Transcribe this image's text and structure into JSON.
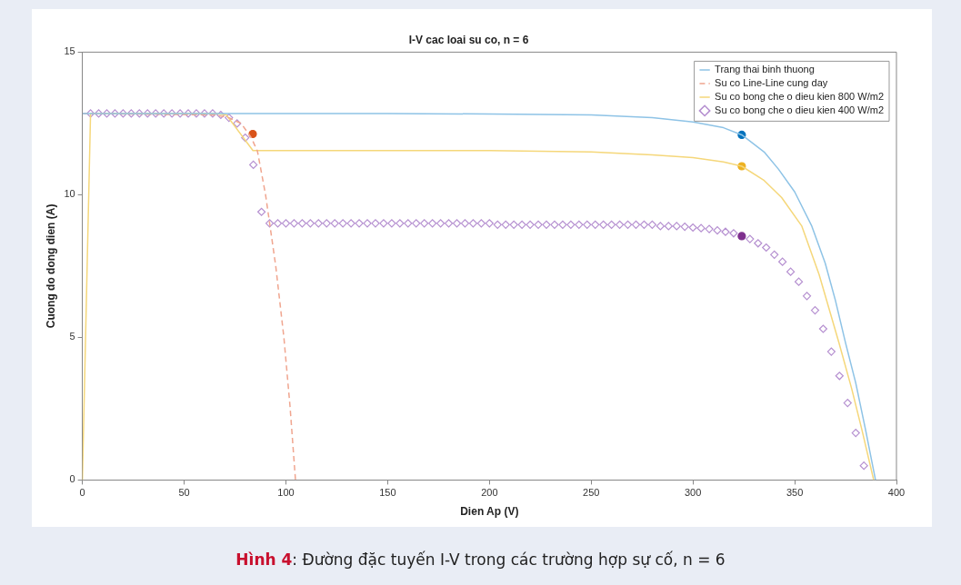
{
  "chart_data": {
    "type": "line",
    "title": "I-V cac loai su co, n = 6",
    "xlabel": "Dien Ap (V)",
    "ylabel": "Cuong do dong dien (A)",
    "xlim": [
      0,
      400
    ],
    "xticks": [
      0,
      50,
      100,
      150,
      200,
      250,
      300,
      350,
      400
    ],
    "ylim": [
      0,
      15
    ],
    "yticks": [
      0,
      5,
      10,
      15
    ],
    "grid": false,
    "legend": "top right",
    "annotations": [
      "Hình 4: Đường đặc tuyến I-V trong các trường hợp sự cố, n = 6"
    ],
    "series": [
      {
        "name": "Trang thai binh thuong",
        "type": "line",
        "color": "#8ec3e6",
        "marker": "none",
        "line_style": "solid",
        "x": [
          0,
          50,
          100,
          150,
          200,
          250,
          280,
          300,
          315,
          324,
          335,
          342,
          350,
          358.4,
          365,
          370,
          375,
          380,
          384.8,
          389.7
        ],
        "values": [
          12.85,
          12.85,
          12.85,
          12.85,
          12.83,
          12.8,
          12.7,
          12.55,
          12.35,
          12.1,
          11.5,
          10.9,
          10.1,
          8.9,
          7.6,
          6.3,
          4.8,
          3.4,
          1.77,
          0
        ]
      },
      {
        "name": "Su co Line-Line cung day",
        "type": "line",
        "color": "#f0a58f",
        "marker": "none",
        "line_style": "dashed",
        "x": [
          0,
          65,
          72,
          78,
          83,
          86,
          90,
          95,
          99,
          102,
          104.7
        ],
        "values": [
          12.85,
          12.8,
          12.7,
          12.5,
          12.0,
          11.53,
          10,
          7.5,
          5,
          2.6,
          0
        ]
      },
      {
        "name": "Su co bong che o dieu kien 800 W/m2",
        "type": "line",
        "color": "#f5d77a",
        "marker": "none",
        "line_style": "solid",
        "x": [
          0,
          4,
          65,
          70.7,
          83.8,
          100,
          200,
          250,
          280,
          300,
          315,
          324,
          335,
          343.6,
          353.5,
          362,
          371.8,
          378,
          383,
          388.8
        ],
        "values": [
          0,
          12.85,
          12.85,
          12.8,
          11.55,
          11.55,
          11.55,
          11.5,
          11.4,
          11.3,
          11.15,
          11.0,
          10.5,
          9.9,
          8.9,
          7.2,
          4.8,
          3.2,
          1.77,
          0
        ]
      },
      {
        "name": "Su co bong che o dieu kien 400 W/m2",
        "type": "scatter",
        "color": "#b58fd0",
        "marker": "diamond",
        "x": [
          4,
          8,
          12,
          16,
          20,
          24,
          28,
          32,
          36,
          40,
          44,
          48,
          52,
          56,
          60,
          64,
          68,
          72,
          76,
          80,
          84,
          88,
          92,
          96,
          100,
          104,
          108,
          112,
          116,
          120,
          124,
          128,
          132,
          136,
          140,
          144,
          148,
          152,
          156,
          160,
          164,
          168,
          172,
          176,
          180,
          184,
          188,
          192,
          196,
          200,
          204,
          208,
          212,
          216,
          220,
          224,
          228,
          232,
          236,
          240,
          244,
          248,
          252,
          256,
          260,
          264,
          268,
          272,
          276,
          280,
          284,
          288,
          292,
          296,
          300,
          304,
          308,
          312,
          316,
          320,
          324,
          328,
          332,
          336,
          340,
          344,
          348,
          352,
          356,
          360,
          364,
          368,
          372,
          376,
          380,
          384
        ],
        "values": [
          12.85,
          12.85,
          12.85,
          12.85,
          12.85,
          12.85,
          12.85,
          12.85,
          12.85,
          12.85,
          12.85,
          12.85,
          12.85,
          12.85,
          12.85,
          12.85,
          12.8,
          12.7,
          12.5,
          12.0,
          11.05,
          9.4,
          9.0,
          9.0,
          9.0,
          9.0,
          9.0,
          9.0,
          9.0,
          9.0,
          9.0,
          9.0,
          9.0,
          9.0,
          9.0,
          9.0,
          9.0,
          9.0,
          9.0,
          9.0,
          9.0,
          9.0,
          9.0,
          9.0,
          9.0,
          9.0,
          9.0,
          9.0,
          9.0,
          9.0,
          8.95,
          8.95,
          8.95,
          8.95,
          8.95,
          8.95,
          8.95,
          8.95,
          8.95,
          8.95,
          8.95,
          8.95,
          8.95,
          8.95,
          8.95,
          8.95,
          8.95,
          8.95,
          8.95,
          8.95,
          8.9,
          8.9,
          8.9,
          8.88,
          8.85,
          8.83,
          8.8,
          8.75,
          8.7,
          8.65,
          null,
          8.45,
          8.3,
          8.15,
          7.9,
          7.65,
          7.3,
          6.95,
          6.45,
          5.95,
          5.3,
          4.5,
          3.65,
          2.7,
          1.65,
          0.5
        ]
      },
      {
        "type": "scatter",
        "marker": "circle",
        "x": [
          83.7,
          324,
          324,
          324
        ],
        "values": [
          12.13,
          12.1,
          11.0,
          8.55
        ],
        "colors": [
          "#d95319",
          "#0072bd",
          "#edb120",
          "#7e2f8e"
        ]
      }
    ]
  }
}
